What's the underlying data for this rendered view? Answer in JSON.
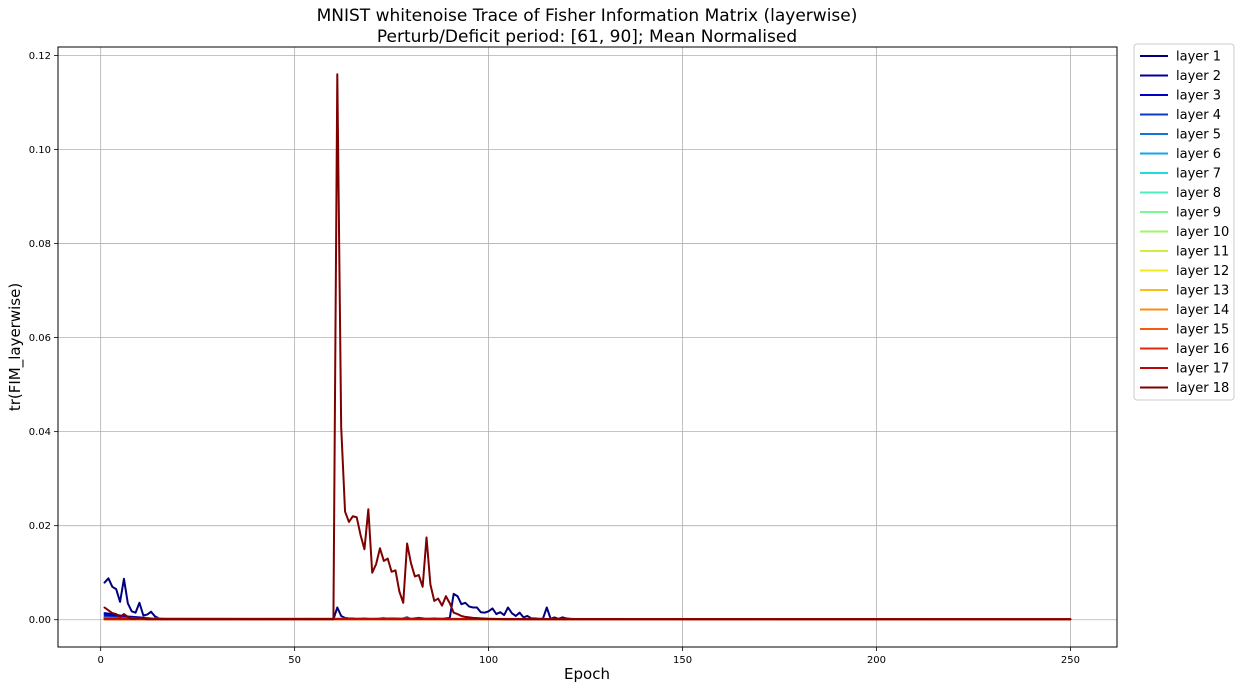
{
  "chart_data": {
    "type": "line",
    "title": "MNIST whitenoise Trace of Fisher Information Matrix (layerwise)",
    "subtitle": "Perturb/Deficit period: [61, 90]; Mean Normalised",
    "xlabel": "Epoch",
    "ylabel": "tr(FIM_layerwise)",
    "xlim": [
      -11,
      262
    ],
    "ylim": [
      -0.0058,
      0.1218
    ],
    "xticks": [
      0,
      50,
      100,
      150,
      200,
      250
    ],
    "xtick_labels": [
      "0",
      "50",
      "100",
      "150",
      "200",
      "250"
    ],
    "yticks": [
      0.0,
      0.02,
      0.04,
      0.06,
      0.08,
      0.1,
      0.12
    ],
    "ytick_labels": [
      "0.00",
      "0.02",
      "0.04",
      "0.06",
      "0.08",
      "0.10",
      "0.12"
    ],
    "grid": true,
    "legend_position": "outside-right-top",
    "series": [
      {
        "name": "layer 1",
        "color": "#00007f",
        "points": [
          [
            1,
            0.0079
          ],
          [
            2,
            0.0088
          ],
          [
            3,
            0.007
          ],
          [
            4,
            0.0065
          ],
          [
            5,
            0.0038
          ],
          [
            6,
            0.0087
          ],
          [
            7,
            0.0035
          ],
          [
            8,
            0.0018
          ],
          [
            9,
            0.0015
          ],
          [
            10,
            0.0036
          ],
          [
            11,
            0.0009
          ],
          [
            12,
            0.0011
          ],
          [
            13,
            0.0017
          ],
          [
            14,
            0.0007
          ],
          [
            15,
            0.0003
          ],
          [
            16,
            0.0002
          ],
          [
            17,
            0.0001
          ],
          [
            20,
            0.0001
          ],
          [
            60,
            0.0001
          ],
          [
            61,
            0.0026
          ],
          [
            62,
            0.0008
          ],
          [
            63,
            0.0004
          ],
          [
            64,
            0.0003
          ],
          [
            65,
            0.0003
          ],
          [
            66,
            0.0002
          ],
          [
            68,
            0.0003
          ],
          [
            69,
            0.0002
          ],
          [
            70,
            0.0001
          ],
          [
            72,
            0.0003
          ],
          [
            73,
            0.0004
          ],
          [
            74,
            0.0002
          ],
          [
            76,
            0.0002
          ],
          [
            77,
            0.0001
          ],
          [
            79,
            0.0005
          ],
          [
            80,
            0.0002
          ],
          [
            82,
            0.0004
          ],
          [
            84,
            0.0002
          ],
          [
            86,
            0.0003
          ],
          [
            88,
            0.0002
          ],
          [
            90,
            0.0004
          ],
          [
            91,
            0.0055
          ],
          [
            92,
            0.005
          ],
          [
            93,
            0.0033
          ],
          [
            94,
            0.0036
          ],
          [
            95,
            0.0028
          ],
          [
            96,
            0.0026
          ],
          [
            97,
            0.0026
          ],
          [
            98,
            0.0016
          ],
          [
            99,
            0.0015
          ],
          [
            100,
            0.0018
          ],
          [
            101,
            0.0024
          ],
          [
            102,
            0.0012
          ],
          [
            103,
            0.0016
          ],
          [
            104,
            0.001
          ],
          [
            105,
            0.0026
          ],
          [
            106,
            0.0014
          ],
          [
            107,
            0.0008
          ],
          [
            108,
            0.0015
          ],
          [
            109,
            0.0005
          ],
          [
            110,
            0.0008
          ],
          [
            111,
            0.0003
          ],
          [
            112,
            0.0003
          ],
          [
            113,
            0.0002
          ],
          [
            114,
            0.0002
          ],
          [
            115,
            0.0026
          ],
          [
            116,
            0.0002
          ],
          [
            117,
            0.0005
          ],
          [
            118,
            0.0002
          ],
          [
            119,
            0.0005
          ],
          [
            120,
            0.0003
          ],
          [
            121,
            0.0002
          ],
          [
            123,
            0.0001
          ],
          [
            250,
            0.0001
          ]
        ]
      },
      {
        "name": "layer 2",
        "color": "#00009f",
        "points": [
          [
            1,
            0.0014
          ],
          [
            3,
            0.0012
          ],
          [
            5,
            0.0009
          ],
          [
            7,
            0.0007
          ],
          [
            10,
            0.0005
          ],
          [
            13,
            0.0003
          ],
          [
            16,
            0.0001
          ],
          [
            250,
            0.0001
          ]
        ]
      },
      {
        "name": "layer 3",
        "color": "#0000c4",
        "points": [
          [
            1,
            0.001
          ],
          [
            4,
            0.0008
          ],
          [
            8,
            0.0005
          ],
          [
            12,
            0.0003
          ],
          [
            16,
            0.0001
          ],
          [
            250,
            0.0001
          ]
        ]
      },
      {
        "name": "layer 4",
        "color": "#0a3cc7",
        "points": [
          [
            1,
            0.0006
          ],
          [
            6,
            0.0004
          ],
          [
            12,
            0.0002
          ],
          [
            16,
            0.0001
          ],
          [
            250,
            0.0001
          ]
        ]
      },
      {
        "name": "layer 5",
        "color": "#1276d4",
        "points": [
          [
            1,
            0.0004
          ],
          [
            10,
            0.0002
          ],
          [
            16,
            0.0001
          ],
          [
            250,
            0.0001
          ]
        ]
      },
      {
        "name": "layer 6",
        "color": "#12a8e6",
        "points": [
          [
            1,
            0.0003
          ],
          [
            12,
            0.0001
          ],
          [
            250,
            0.0001
          ]
        ]
      },
      {
        "name": "layer 7",
        "color": "#22dbdb",
        "points": [
          [
            1,
            0.0002
          ],
          [
            250,
            0.0001
          ]
        ]
      },
      {
        "name": "layer 8",
        "color": "#4bf0c0",
        "points": [
          [
            1,
            0.0002
          ],
          [
            250,
            0.0001
          ]
        ]
      },
      {
        "name": "layer 9",
        "color": "#7bf796",
        "points": [
          [
            1,
            0.0001
          ],
          [
            250,
            0.0001
          ]
        ]
      },
      {
        "name": "layer 10",
        "color": "#a0f56a",
        "points": [
          [
            1,
            0.0001
          ],
          [
            250,
            0.0001
          ]
        ]
      },
      {
        "name": "layer 11",
        "color": "#ccf03c",
        "points": [
          [
            1,
            0.0001
          ],
          [
            250,
            0.0001
          ]
        ]
      },
      {
        "name": "layer 12",
        "color": "#f0ea1e",
        "points": [
          [
            1,
            0.0001
          ],
          [
            250,
            0.0001
          ]
        ]
      },
      {
        "name": "layer 13",
        "color": "#f9bf18",
        "points": [
          [
            1,
            0.0001
          ],
          [
            250,
            0.0001
          ]
        ]
      },
      {
        "name": "layer 14",
        "color": "#fb8d12",
        "points": [
          [
            1,
            0.0001
          ],
          [
            70,
            0.0002
          ],
          [
            75,
            0.0004
          ],
          [
            80,
            0.0002
          ],
          [
            250,
            0.0001
          ]
        ]
      },
      {
        "name": "layer 15",
        "color": "#f45a10",
        "points": [
          [
            1,
            0.0001
          ],
          [
            250,
            0.0001
          ]
        ]
      },
      {
        "name": "layer 16",
        "color": "#e4280c",
        "points": [
          [
            1,
            0.0001
          ],
          [
            250,
            0.0001
          ]
        ]
      },
      {
        "name": "layer 17",
        "color": "#b80708",
        "points": [
          [
            1,
            0.0002
          ],
          [
            250,
            0.0001
          ]
        ]
      },
      {
        "name": "layer 18",
        "color": "#7f0000",
        "points": [
          [
            1,
            0.0026
          ],
          [
            2,
            0.002
          ],
          [
            3,
            0.0014
          ],
          [
            4,
            0.0012
          ],
          [
            5,
            0.0006
          ],
          [
            6,
            0.0012
          ],
          [
            7,
            0.0006
          ],
          [
            8,
            0.0002
          ],
          [
            9,
            0.0002
          ],
          [
            10,
            0.0004
          ],
          [
            12,
            0.0001
          ],
          [
            60,
            0.0001
          ],
          [
            61,
            0.116
          ],
          [
            62,
            0.041
          ],
          [
            63,
            0.023
          ],
          [
            64,
            0.0208
          ],
          [
            65,
            0.022
          ],
          [
            66,
            0.0218
          ],
          [
            67,
            0.018
          ],
          [
            68,
            0.015
          ],
          [
            69,
            0.0235
          ],
          [
            70,
            0.01
          ],
          [
            71,
            0.0118
          ],
          [
            72,
            0.0152
          ],
          [
            73,
            0.0125
          ],
          [
            74,
            0.013
          ],
          [
            75,
            0.0102
          ],
          [
            76,
            0.0105
          ],
          [
            77,
            0.006
          ],
          [
            78,
            0.0036
          ],
          [
            79,
            0.0162
          ],
          [
            80,
            0.012
          ],
          [
            81,
            0.0092
          ],
          [
            82,
            0.0095
          ],
          [
            83,
            0.007
          ],
          [
            84,
            0.0175
          ],
          [
            85,
            0.0075
          ],
          [
            86,
            0.004
          ],
          [
            87,
            0.0045
          ],
          [
            88,
            0.003
          ],
          [
            89,
            0.005
          ],
          [
            90,
            0.0035
          ],
          [
            91,
            0.0015
          ],
          [
            92,
            0.0012
          ],
          [
            93,
            0.0008
          ],
          [
            94,
            0.0006
          ],
          [
            96,
            0.0004
          ],
          [
            98,
            0.0003
          ],
          [
            100,
            0.0002
          ],
          [
            104,
            0.0001
          ],
          [
            250,
            0.0001
          ]
        ]
      }
    ]
  }
}
